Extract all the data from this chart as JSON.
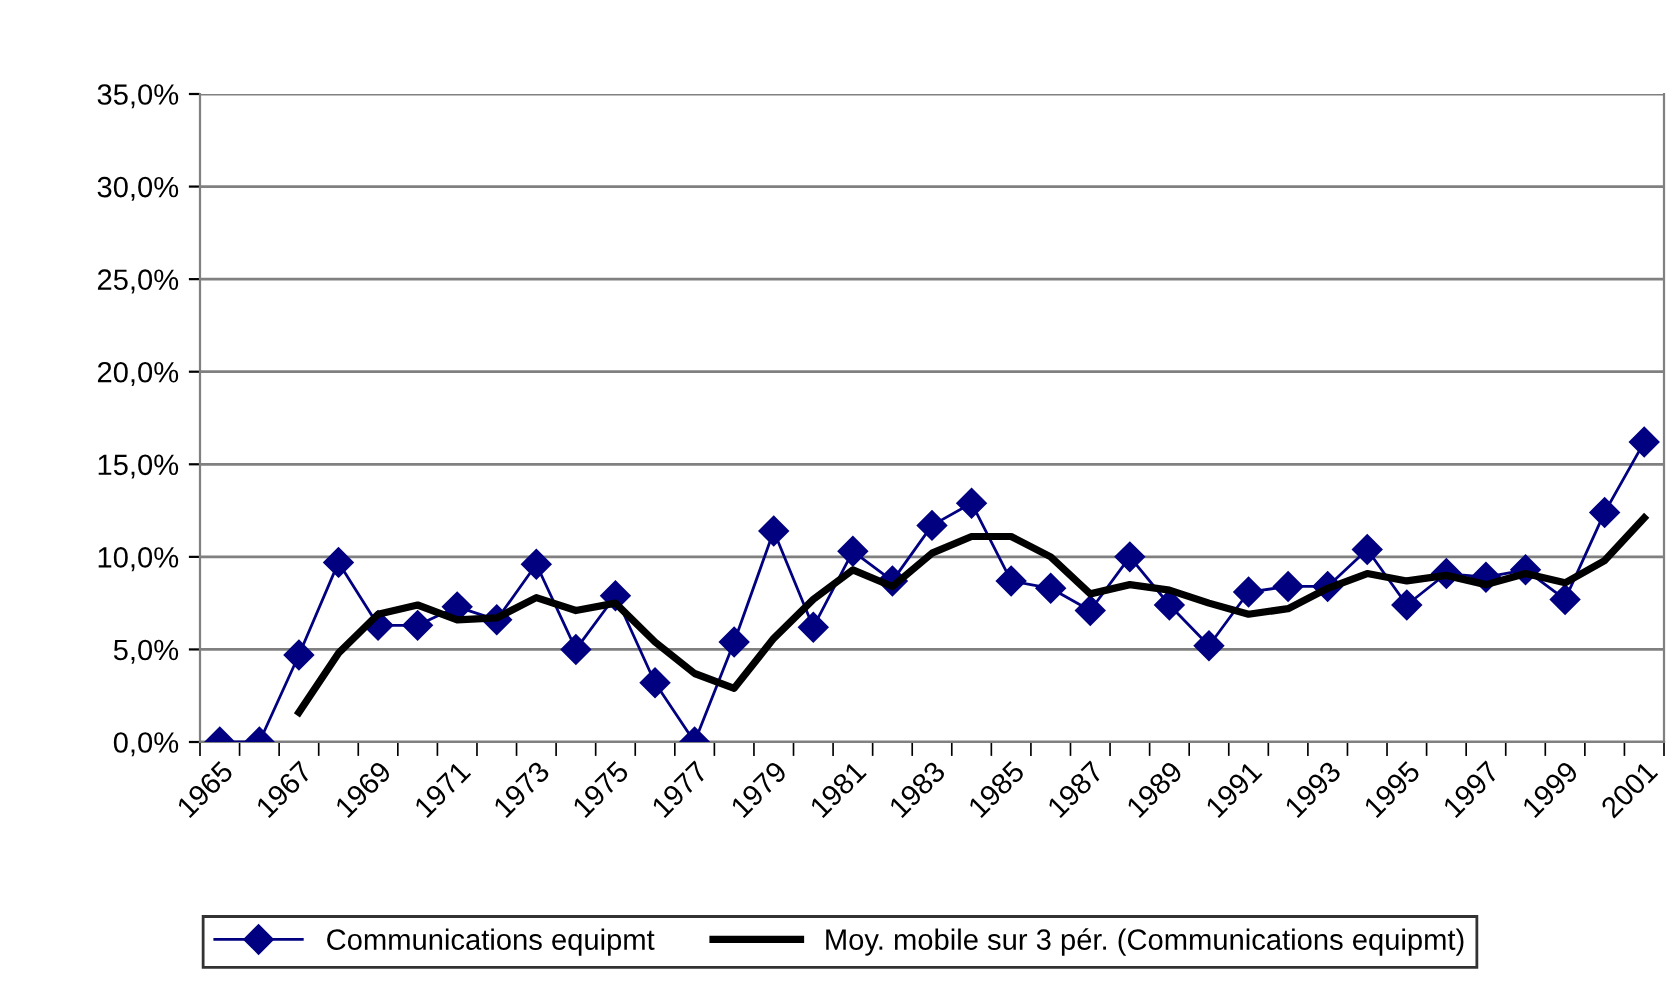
{
  "chart_data": {
    "type": "line",
    "categories": [
      "1965",
      null,
      "1967",
      null,
      "1969",
      null,
      "1971",
      null,
      "1973",
      null,
      "1975",
      null,
      "1977",
      null,
      "1979",
      null,
      "1981",
      null,
      "1983",
      null,
      "1985",
      null,
      "1987",
      null,
      "1989",
      null,
      "1991",
      null,
      "1993",
      null,
      "1995",
      null,
      "1997",
      null,
      "1999",
      null,
      "2001"
    ],
    "series": [
      {
        "name": "Communications equipmt",
        "color": "#000080",
        "marker": "diamond",
        "values": [
          0,
          0,
          4.7,
          9.7,
          6.3,
          6.3,
          7.3,
          6.6,
          9.6,
          5.0,
          7.9,
          3.2,
          0,
          5.4,
          11.4,
          6.2,
          10.3,
          8.7,
          11.7,
          12.9,
          8.7,
          8.3,
          7.1,
          10.0,
          7.4,
          5.2,
          8.1,
          8.4,
          8.4,
          10.4,
          7.4,
          9.1,
          8.9,
          9.3,
          7.7,
          12.4,
          16.2
        ]
      },
      {
        "name": "Moy. mobile sur 3 pér. (Communications equipmt)",
        "color": "#000000",
        "marker": "none",
        "values": [
          null,
          null,
          1.6,
          4.8,
          6.9,
          7.4,
          6.6,
          6.7,
          7.8,
          7.1,
          7.5,
          5.4,
          3.7,
          2.9,
          5.6,
          7.7,
          9.3,
          8.4,
          10.2,
          11.1,
          11.1,
          10.0,
          8.0,
          8.5,
          8.2,
          7.5,
          6.9,
          7.2,
          8.3,
          9.1,
          8.7,
          9.0,
          8.5,
          9.1,
          8.6,
          9.8,
          12.1
        ]
      }
    ],
    "ylim": [
      0,
      35
    ],
    "yticks": [
      {
        "value": 0,
        "label": "0,0%"
      },
      {
        "value": 5,
        "label": "5,0%"
      },
      {
        "value": 10,
        "label": "10,0%"
      },
      {
        "value": 15,
        "label": "15,0%"
      },
      {
        "value": 20,
        "label": "20,0%"
      },
      {
        "value": 25,
        "label": "25,0%"
      },
      {
        "value": 30,
        "label": "30,0%"
      },
      {
        "value": 35,
        "label": "35,0%"
      }
    ],
    "grid": "y",
    "legend": "bottom"
  }
}
